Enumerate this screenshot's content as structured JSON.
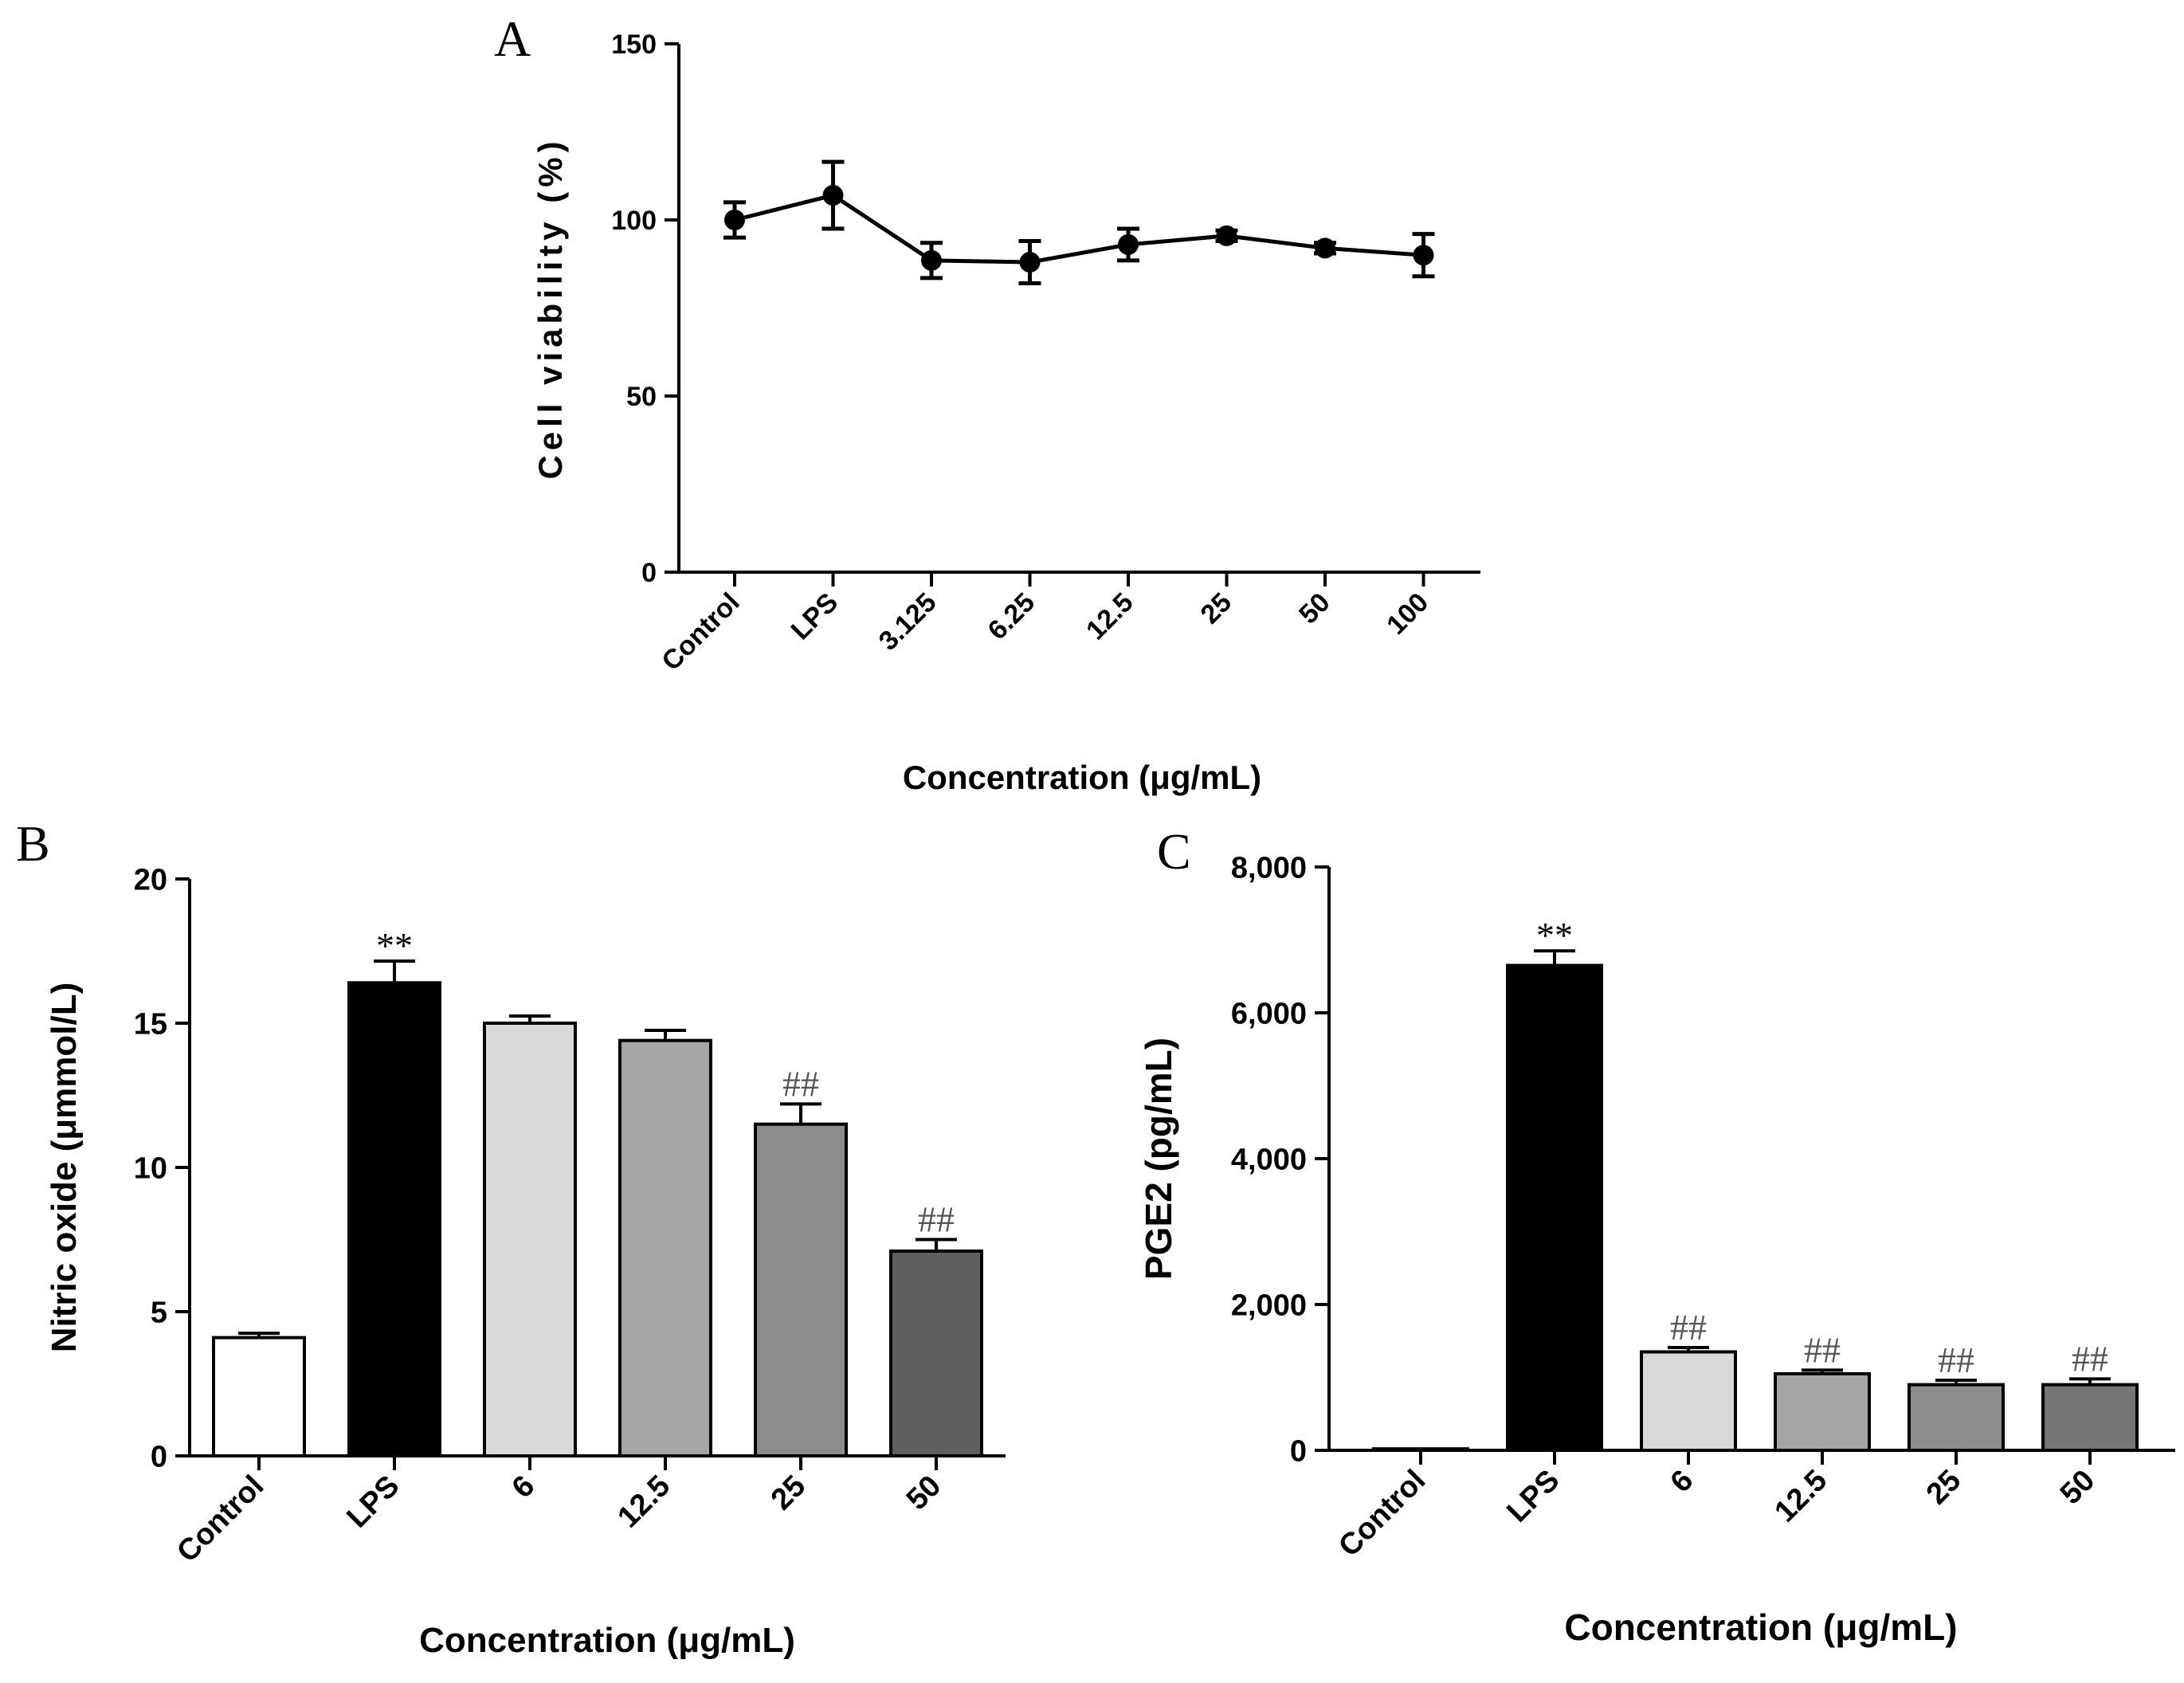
{
  "chart_data": [
    {
      "panel": "A",
      "type": "line",
      "categories": [
        "Control",
        "LPS",
        "3.125",
        "6.25",
        "12.5",
        "25",
        "50",
        "100"
      ],
      "values": [
        100,
        107,
        88.5,
        88,
        93,
        95.5,
        92,
        90
      ],
      "errors": [
        5,
        9.5,
        5,
        6,
        4.5,
        1.5,
        1.5,
        6
      ],
      "ylabel": "Cell viability (%)",
      "xlabel": "Concentration (μg/mL)",
      "ylim": [
        0,
        150
      ],
      "yticks": [
        "0",
        "50",
        "100",
        "150"
      ],
      "color": "#000000"
    },
    {
      "panel": "B",
      "type": "bar",
      "categories": [
        "Control",
        "LPS",
        "6",
        "12.5",
        "25",
        "50"
      ],
      "values": [
        4.1,
        16.4,
        15.0,
        14.4,
        11.5,
        7.1
      ],
      "errors": [
        0.15,
        0.75,
        0.25,
        0.35,
        0.7,
        0.4
      ],
      "annotations": [
        "",
        "**",
        "",
        "",
        "##",
        "##"
      ],
      "bar_colors": [
        "#ffffff",
        "#000000",
        "#d9d9d9",
        "#a6a6a6",
        "#8c8c8c",
        "#5f5f5f"
      ],
      "ylabel": "Nitric oxide (μmmol/L)",
      "xlabel": "Concentration (μg/mL)",
      "ylim": [
        0,
        20
      ],
      "yticks": [
        "0",
        "5",
        "10",
        "15",
        "20"
      ]
    },
    {
      "panel": "C",
      "type": "bar",
      "categories": [
        "Control",
        "LPS",
        "6",
        "12.5",
        "25",
        "50"
      ],
      "values": [
        20,
        6650,
        1350,
        1050,
        900,
        900
      ],
      "errors": [
        0,
        200,
        60,
        50,
        60,
        80
      ],
      "annotations": [
        "",
        "**",
        "##",
        "##",
        "##",
        "##"
      ],
      "bar_colors": [
        "#ffffff",
        "#000000",
        "#d9d9d9",
        "#a6a6a6",
        "#8c8c8c",
        "#767676"
      ],
      "ylabel": "PGE2 (pg/mL)",
      "xlabel": "Concentration (μg/mL)",
      "ylim": [
        0,
        8000
      ],
      "yticks": [
        "0",
        "2,000",
        "4,000",
        "6,000",
        "8,000"
      ]
    }
  ]
}
